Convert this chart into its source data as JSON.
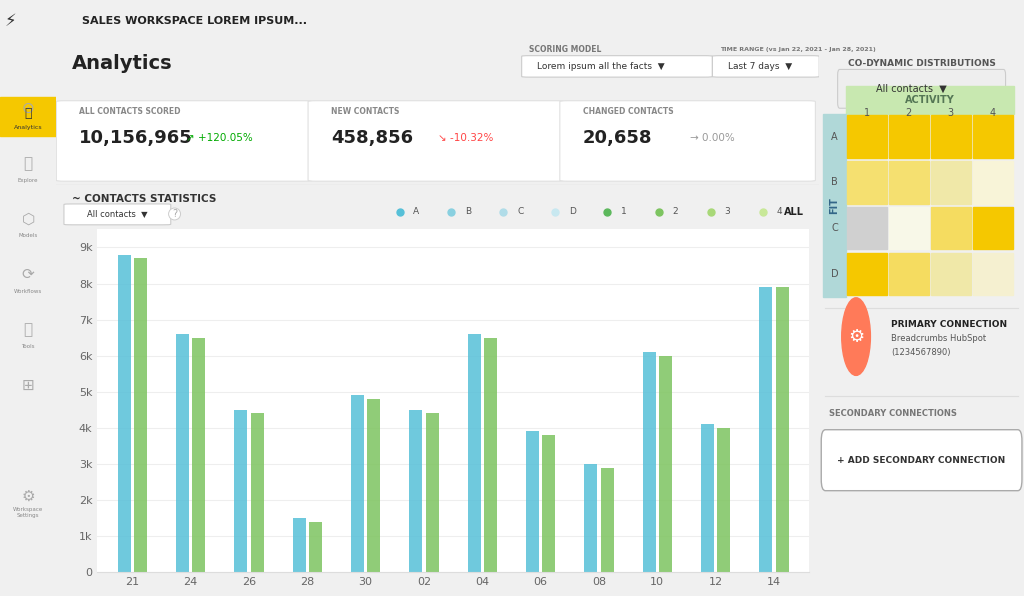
{
  "title": "Analytics",
  "header_bg": "#F5C800",
  "sidebar_bg": "#2D2D2D",
  "main_bg": "#F8F8F8",
  "card_bg": "#FFFFFF",
  "right_panel_bg": "#F8F8F8",
  "stats": [
    {
      "label": "ALL CONTACTS SCORED",
      "value": "10,156,965",
      "change": "+120.05%",
      "change_color": "#00AA00",
      "arrow": "up"
    },
    {
      "label": "NEW CONTACTS",
      "value": "458,856",
      "change": "-10.32%",
      "change_color": "#FF4444",
      "arrow": "down"
    },
    {
      "label": "CHANGED CONTACTS",
      "value": "20,658",
      "change": "0.00%",
      "change_color": "#999999",
      "arrow": "right"
    }
  ],
  "bar_dates": [
    "21",
    "24",
    "26",
    "28",
    "30",
    "02",
    "04",
    "06",
    "08",
    "10",
    "12",
    "14"
  ],
  "bar_data_blue": [
    8800,
    6600,
    4500,
    1500,
    4900,
    4500,
    6600,
    3900,
    3000,
    6100,
    4100,
    7900
  ],
  "bar_data_green": [
    8700,
    6500,
    4400,
    1400,
    4800,
    4400,
    6500,
    3800,
    2900,
    6000,
    4000,
    7900
  ],
  "bar_color_blue": "#56C0D8",
  "bar_color_green": "#7DC460",
  "bar_color_blue2": "#A8D8E8",
  "bar_color_green2": "#B8E098",
  "y_ticks": [
    0,
    1000,
    2000,
    3000,
    4000,
    5000,
    6000,
    7000,
    8000,
    9000
  ],
  "y_labels": [
    "0",
    "1k",
    "2k",
    "3k",
    "4k",
    "5k",
    "6k",
    "7k",
    "8k",
    "9k"
  ],
  "grid_color": "#EEEEEE",
  "section_title": "CONTACTS STATISTICS",
  "legend_items": [
    {
      "label": "A",
      "color": "#56C0D8"
    },
    {
      "label": "B",
      "color": "#89D0E0"
    },
    {
      "label": "C",
      "color": "#B0DCE8"
    },
    {
      "label": "D",
      "color": "#C8E8F0"
    },
    {
      "label": "1",
      "color": "#5CB85C"
    },
    {
      "label": "2",
      "color": "#7DC460"
    },
    {
      "label": "3",
      "color": "#A8D878"
    },
    {
      "label": "4",
      "color": "#C8E898"
    }
  ],
  "heatmap_colors": [
    [
      "#F5C800",
      "#F5C800",
      "#F5C800",
      "#F5C800"
    ],
    [
      "#F5E070",
      "#F5E070",
      "#F0E8A8",
      "#F8F4D8"
    ],
    [
      "#D0D0D0",
      "#F8F8E8",
      "#F5DC60",
      "#F5C800"
    ],
    [
      "#F5C800",
      "#F5DC60",
      "#F0E8A8",
      "#F5F0D0"
    ]
  ],
  "heatmap_rows": [
    "A",
    "B",
    "C",
    "D"
  ],
  "heatmap_cols": [
    "1",
    "2",
    "3",
    "4"
  ],
  "activity_header_color": "#C8E8B0",
  "fit_header_color": "#B0D8D8",
  "co_dynamic_title": "CO-DYNAMIC DISTRIBUTIONS",
  "primary_connection_title": "PRIMARY CONNECTION",
  "primary_connection_sub": "Breadcrumbs HubSpot",
  "primary_connection_id": "(1234567890)",
  "secondary_connections": "SECONDARY CONNECTIONS",
  "add_connection_btn": "+ ADD SECONDARY CONNECTION",
  "scoring_model_label": "SCORING MODEL",
  "scoring_model_value": "Lorem ipsum all the facts",
  "time_range_label": "TIME RANGE (vs Jan 22, 2021 - Jan 28, 2021)",
  "time_range_value": "Last 7 days"
}
